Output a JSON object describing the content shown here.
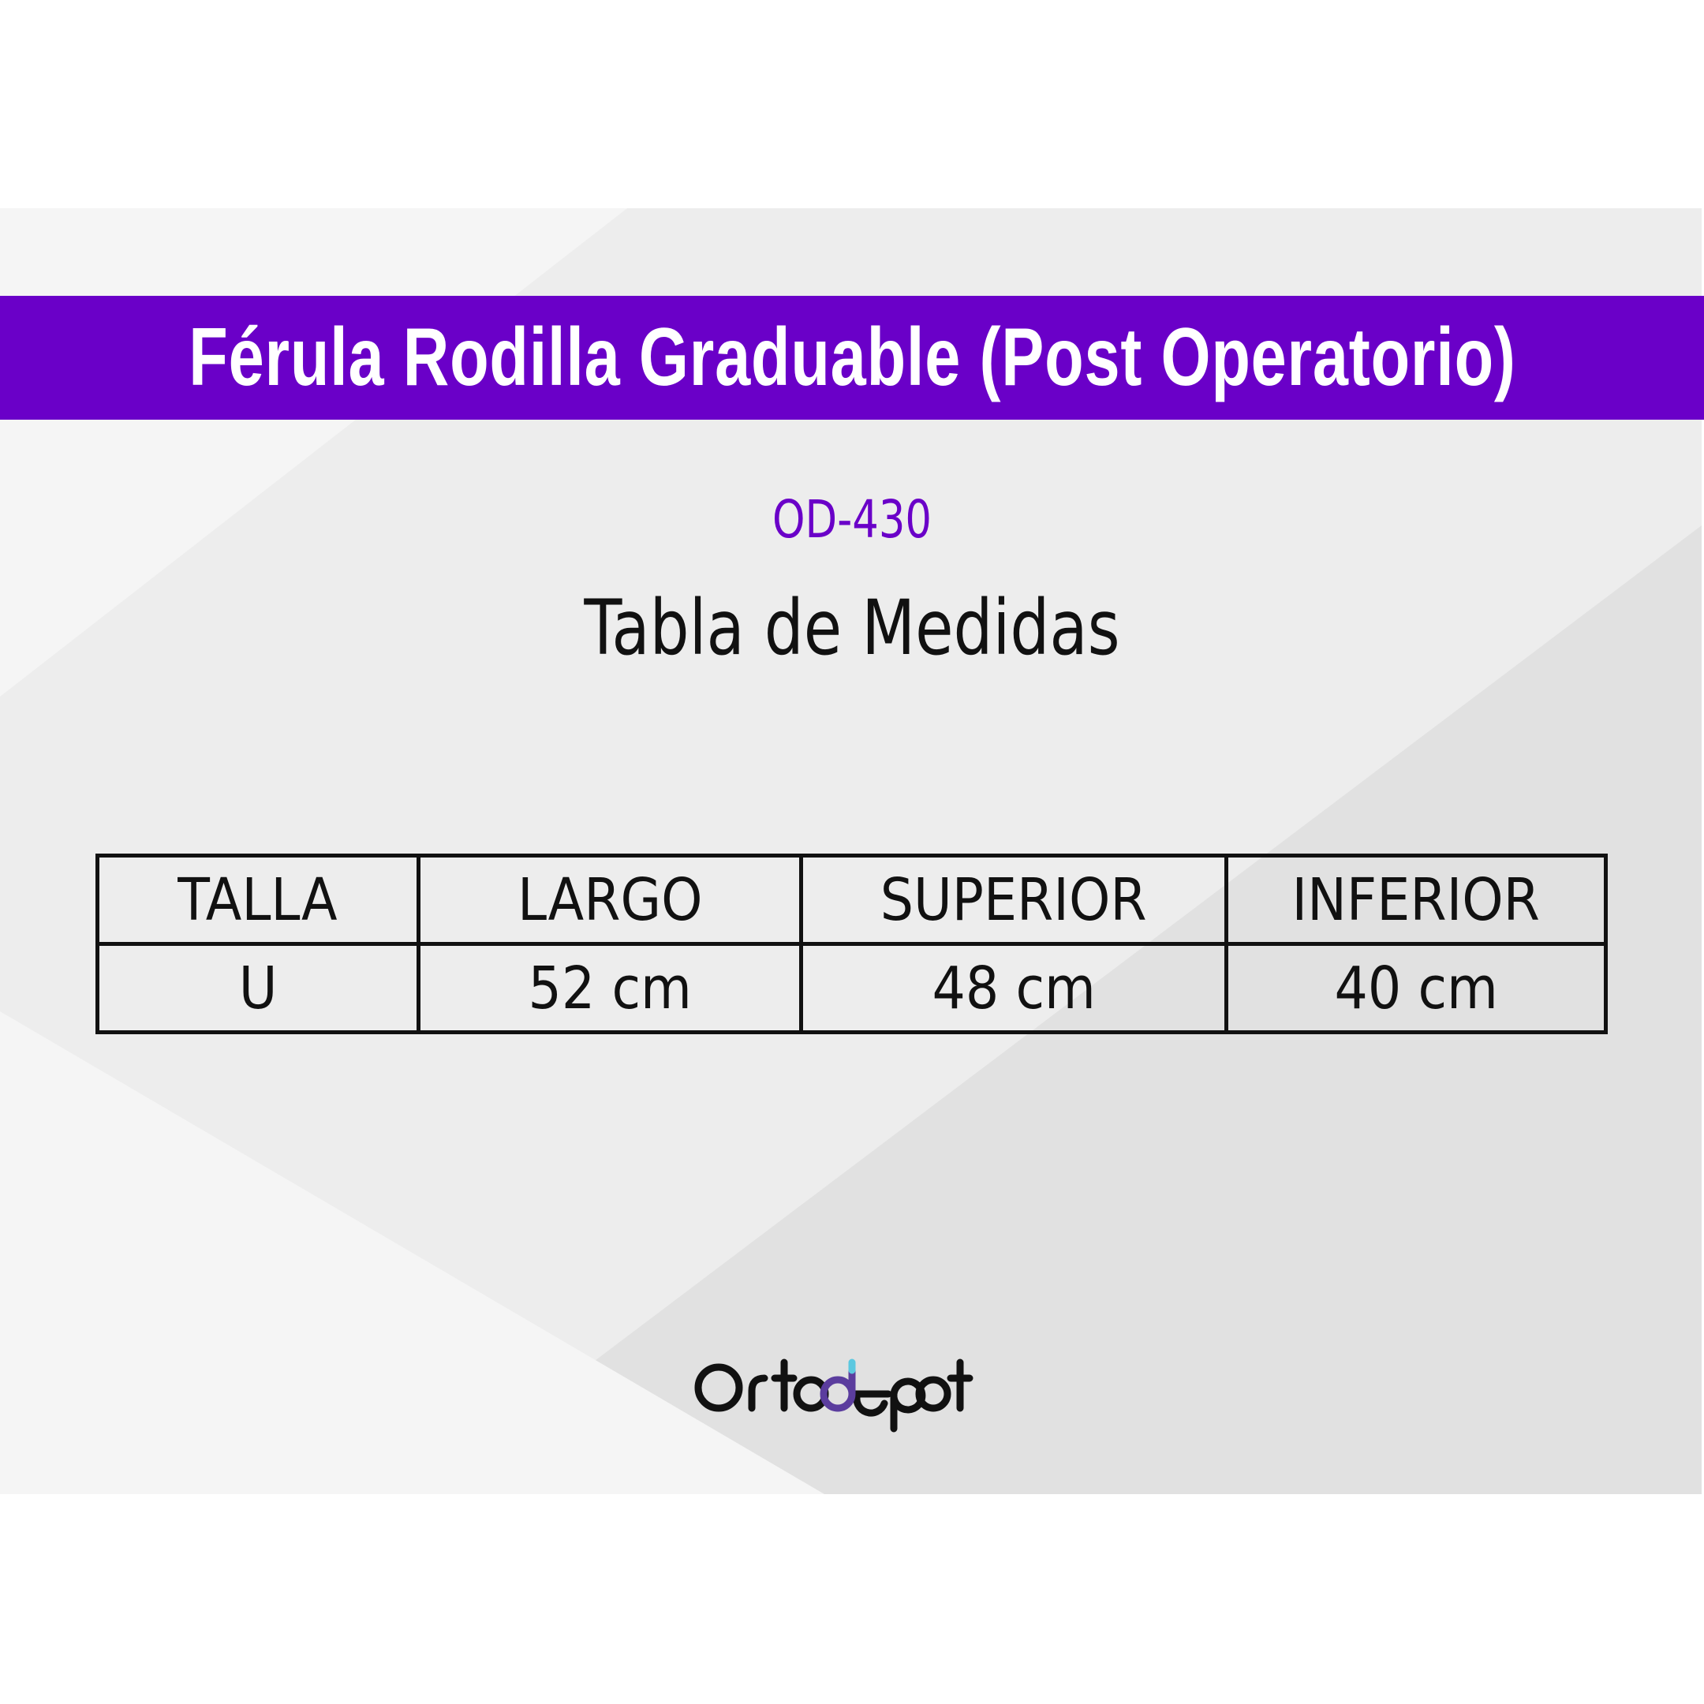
{
  "title": "Férula Rodilla Graduable (Post Operatorio)",
  "product_code": "OD-430",
  "subtitle": "Tabla de Medidas",
  "table": {
    "headers": [
      "TALLA",
      "LARGO",
      "SUPERIOR",
      "INFERIOR"
    ],
    "rows": [
      [
        "U",
        "52 cm",
        "48 cm",
        "40 cm"
      ]
    ]
  },
  "logo": {
    "text": "Ortodepot"
  },
  "colors": {
    "accent": "#6a00c8",
    "logo_d": "#5b3d9e",
    "logo_d_tip": "#5bc8e0"
  }
}
